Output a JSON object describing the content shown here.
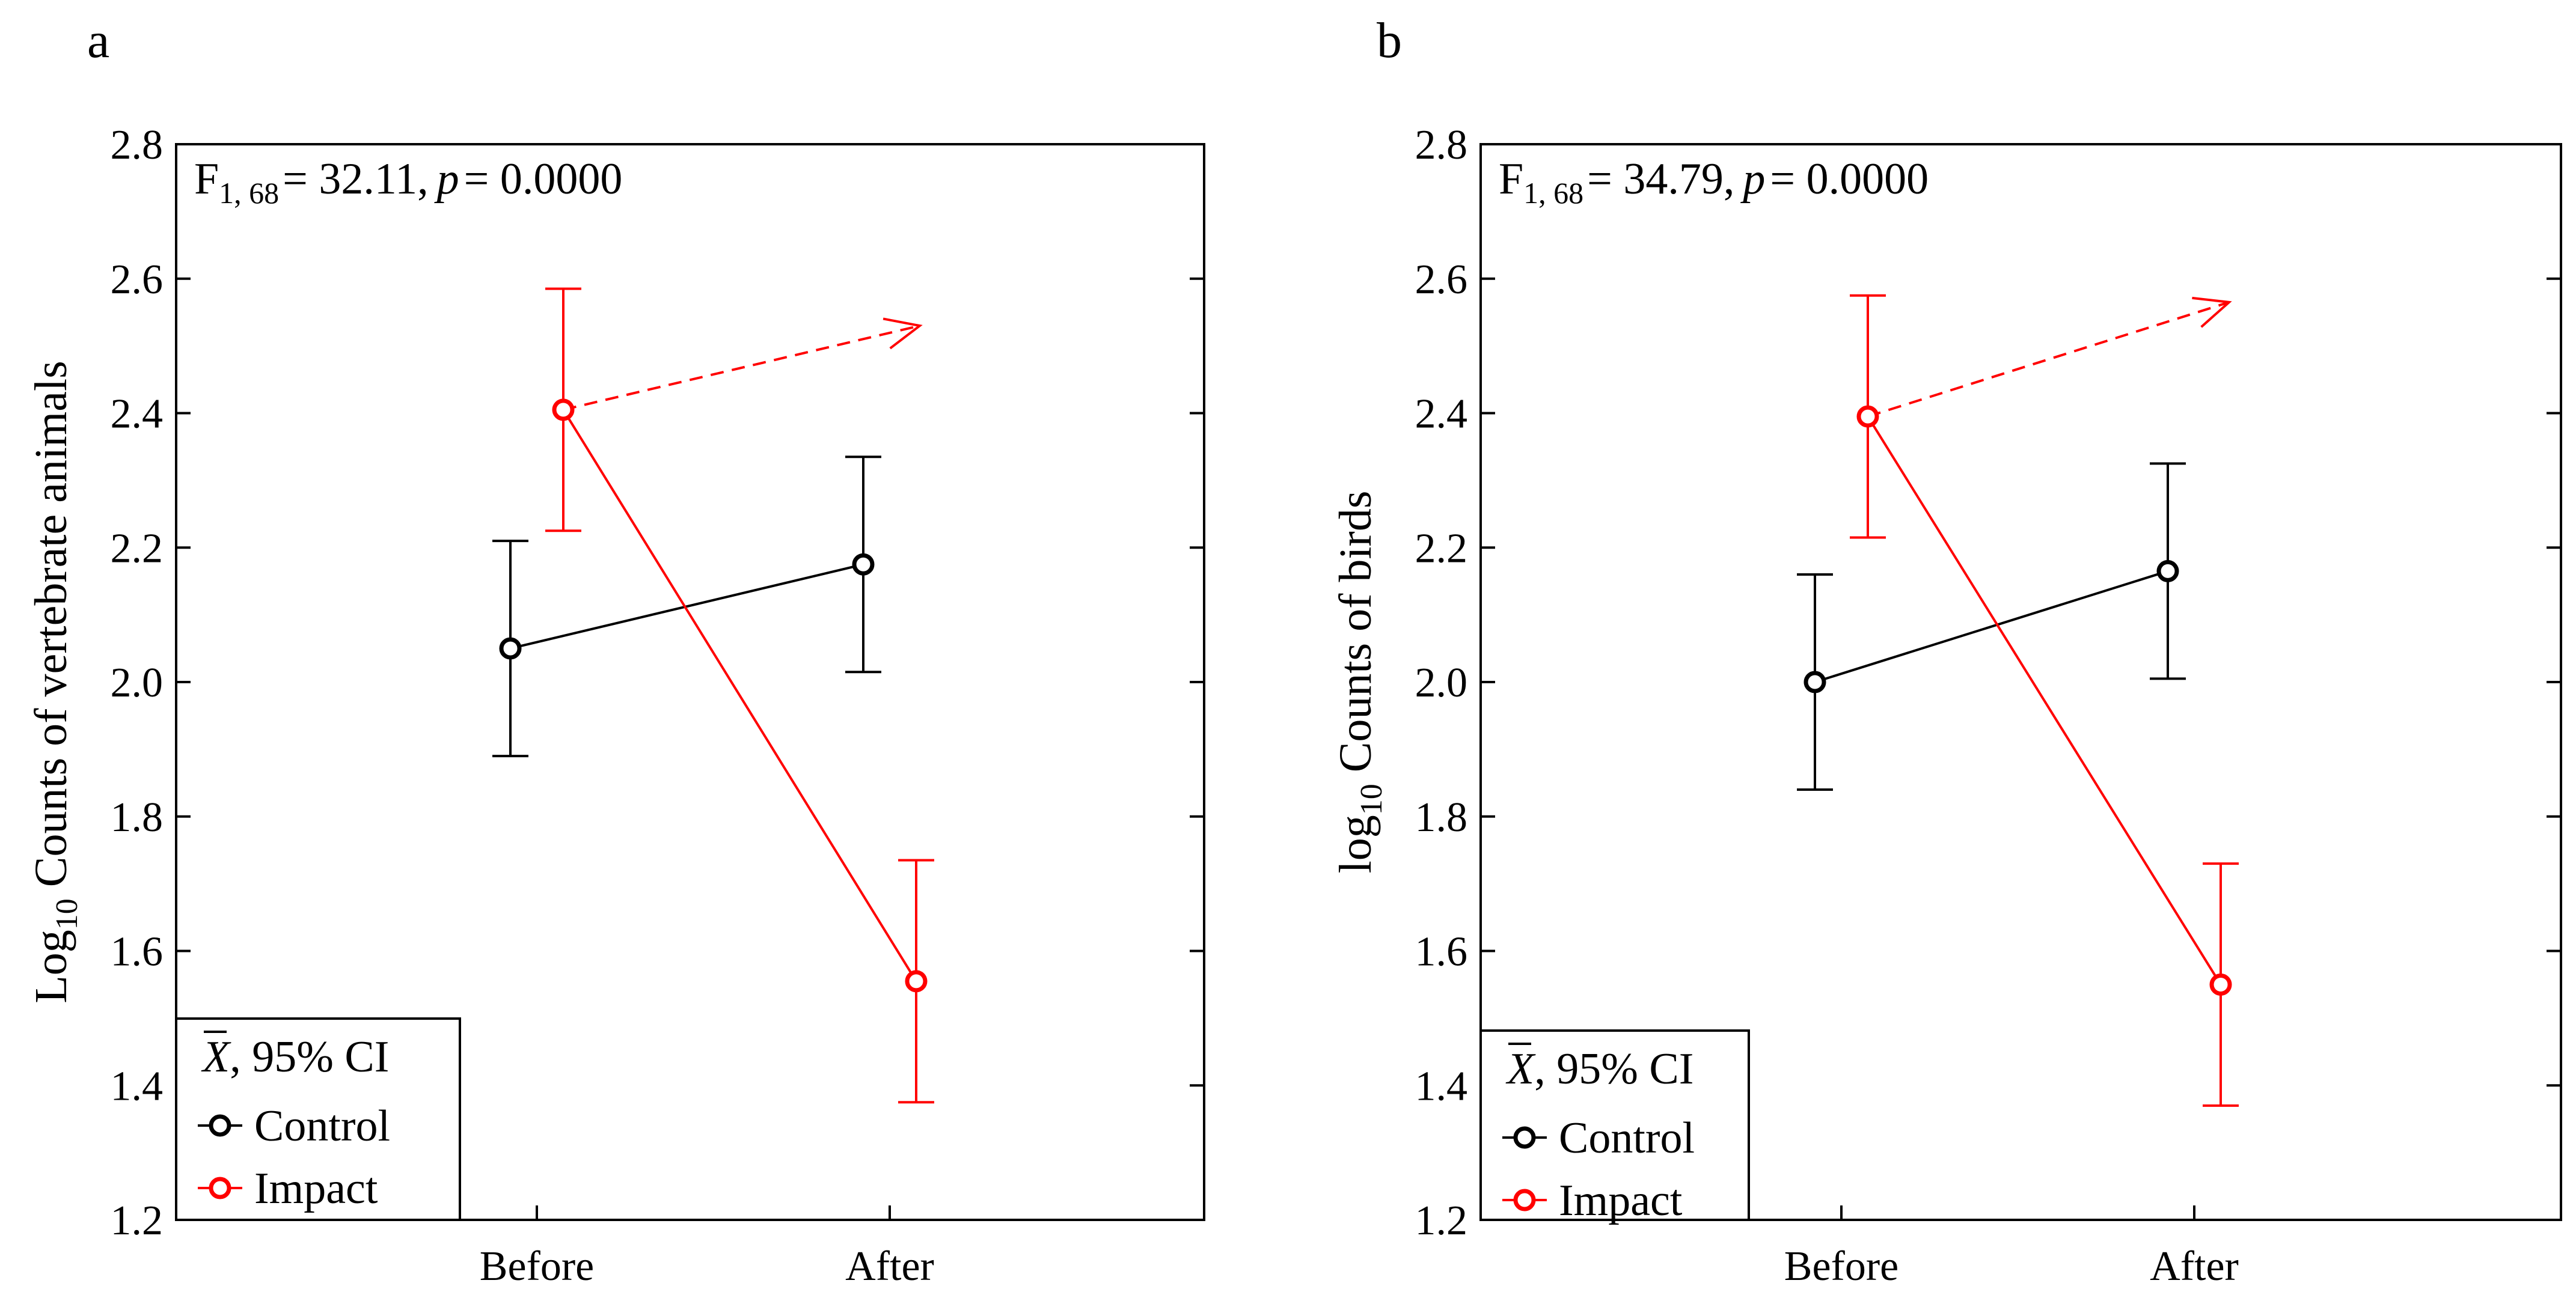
{
  "chart_data": [
    {
      "type": "line",
      "panel_label": "a",
      "annotation": {
        "stat": "F",
        "df": "1, 68",
        "eq_value": "= 32.11,",
        "p_symbol": "p",
        "p_value": "= 0.0000"
      },
      "ylabel": {
        "pre": "Log",
        "sub": "10",
        "post": " Counts of vertebrate animals"
      },
      "xlabel": "",
      "categories": [
        "Before",
        "After"
      ],
      "ylim": [
        1.2,
        2.8
      ],
      "yticks": [
        "1.2",
        "1.4",
        "1.6",
        "1.8",
        "2.0",
        "2.2",
        "2.4",
        "2.6",
        "2.8"
      ],
      "series": [
        {
          "name": "Control",
          "color": "#000000",
          "values": [
            2.05,
            2.175
          ],
          "ci_low": [
            1.89,
            2.015
          ],
          "ci_high": [
            2.21,
            2.335
          ]
        },
        {
          "name": "Impact",
          "color": "#ff0000",
          "values": [
            2.405,
            1.555
          ],
          "ci_low": [
            2.225,
            1.375
          ],
          "ci_high": [
            2.585,
            1.735
          ],
          "projection": {
            "from": 2.405,
            "to": 2.53,
            "style": "dashed"
          }
        }
      ],
      "legend": {
        "title_symbol": "X",
        "title_text": ", 95% CI",
        "placement": "bottom-left"
      }
    },
    {
      "type": "line",
      "panel_label": "b",
      "annotation": {
        "stat": "F",
        "df": "1, 68",
        "eq_value": "= 34.79,",
        "p_symbol": "p",
        "p_value": "= 0.0000"
      },
      "ylabel": {
        "pre": "log",
        "sub": "10",
        "post": " Counts of birds"
      },
      "xlabel": "",
      "categories": [
        "Before",
        "After"
      ],
      "ylim": [
        1.2,
        2.8
      ],
      "yticks": [
        "1.2",
        "1.4",
        "1.6",
        "1.8",
        "2.0",
        "2.2",
        "2.4",
        "2.6",
        "2.8"
      ],
      "series": [
        {
          "name": "Control",
          "color": "#000000",
          "values": [
            2.0,
            2.165
          ],
          "ci_low": [
            1.84,
            2.005
          ],
          "ci_high": [
            2.16,
            2.325
          ]
        },
        {
          "name": "Impact",
          "color": "#ff0000",
          "values": [
            2.395,
            1.55
          ],
          "ci_low": [
            2.215,
            1.37
          ],
          "ci_high": [
            2.575,
            1.73
          ],
          "projection": {
            "from": 2.395,
            "to": 2.565,
            "style": "dashed"
          }
        }
      ],
      "legend": {
        "title_symbol": "X",
        "title_text": ", 95% CI",
        "placement": "bottom-left"
      }
    }
  ]
}
